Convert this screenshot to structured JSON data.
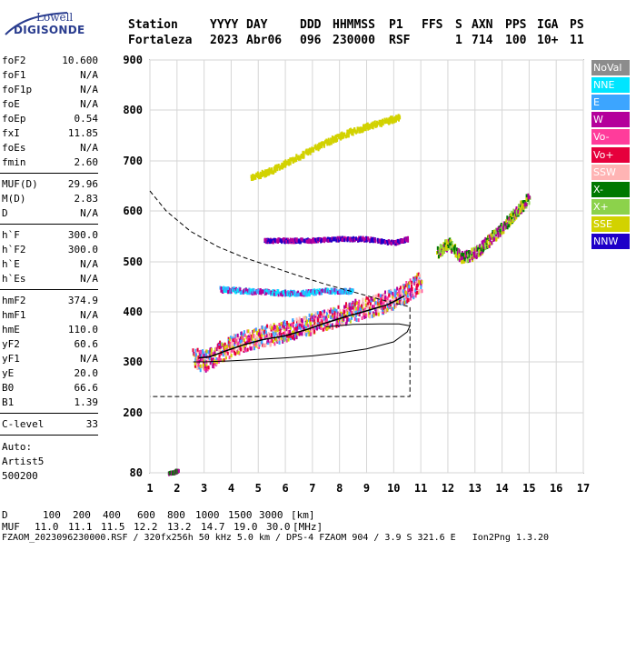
{
  "logo": {
    "line1": "Lowell",
    "line2": "DIGISONDE"
  },
  "header": {
    "row1": [
      "Station",
      "YYYY",
      "DAY",
      "DDD",
      "HHMMSS",
      "P1",
      "FFS",
      "S",
      "AXN",
      "PPS",
      "IGA",
      "PS"
    ],
    "row2": [
      "Fortaleza",
      "2023",
      "Abr06",
      "096",
      "230000",
      "RSF",
      "1",
      "714",
      "100",
      "10+",
      "11"
    ]
  },
  "params": [
    {
      "k": "foF2",
      "v": "10.600"
    },
    {
      "k": "foF1",
      "v": "N/A"
    },
    {
      "k": "foF1p",
      "v": "N/A"
    },
    {
      "k": "foE",
      "v": "N/A"
    },
    {
      "k": "foEp",
      "v": "0.54"
    },
    {
      "k": "fxI",
      "v": "11.85"
    },
    {
      "k": "foEs",
      "v": "N/A"
    },
    {
      "k": "fmin",
      "v": "2.60"
    },
    {
      "k": "MUF(D)",
      "v": "29.96"
    },
    {
      "k": "M(D)",
      "v": "2.83"
    },
    {
      "k": "D",
      "v": "N/A"
    },
    {
      "k": "h`F",
      "v": "300.0"
    },
    {
      "k": "h`F2",
      "v": "300.0"
    },
    {
      "k": "h`E",
      "v": "N/A"
    },
    {
      "k": "h`Es",
      "v": "N/A"
    },
    {
      "k": "hmF2",
      "v": "374.9"
    },
    {
      "k": "hmF1",
      "v": "N/A"
    },
    {
      "k": "hmE",
      "v": "110.0"
    },
    {
      "k": "yF2",
      "v": "60.6"
    },
    {
      "k": "yF1",
      "v": "N/A"
    },
    {
      "k": "yE",
      "v": "20.0"
    },
    {
      "k": "B0",
      "v": "66.6"
    },
    {
      "k": "B1",
      "v": "1.39"
    },
    {
      "k": "C-level",
      "v": "33"
    }
  ],
  "auto": [
    "Auto:",
    "Artist5",
    "500200"
  ],
  "legend": [
    {
      "label": "NoVal",
      "color": "#8c8c8c"
    },
    {
      "label": "NNE",
      "color": "#00e5ff"
    },
    {
      "label": "E",
      "color": "#3ca5ff"
    },
    {
      "label": "W",
      "color": "#b4009b"
    },
    {
      "label": "Vo-",
      "color": "#ff3c9b"
    },
    {
      "label": "Vo+",
      "color": "#e6003c"
    },
    {
      "label": "SSW",
      "color": "#ffb4b4"
    },
    {
      "label": "X-",
      "color": "#007800"
    },
    {
      "label": "X+",
      "color": "#8cd24b"
    },
    {
      "label": "SSE",
      "color": "#d2d200"
    },
    {
      "label": "NNW",
      "color": "#1e00c8"
    }
  ],
  "footer": {
    "d_row": [
      "D",
      "100",
      "200",
      "400",
      "600",
      "800",
      "1000",
      "1500",
      "3000",
      "[km]"
    ],
    "muf_row": [
      "MUF",
      "11.0",
      "11.1",
      "11.5",
      "12.2",
      "13.2",
      "14.7",
      "19.0",
      "30.0",
      "[MHz]"
    ],
    "info": "FZAOM_2023096230000.RSF / 320fx256h 50 kHz 5.0 km / DPS-4 FZAOM 904 / 3.9 S 321.6 E   Ion2Png 1.3.20"
  },
  "chart_data": {
    "type": "scatter",
    "title": "",
    "xlabel": "",
    "ylabel": "",
    "xlim": [
      1,
      17
    ],
    "ylim": [
      80,
      900
    ],
    "xticks": [
      1,
      2,
      3,
      4,
      5,
      6,
      7,
      8,
      9,
      10,
      11,
      12,
      13,
      14,
      15,
      16,
      17
    ],
    "yticks": [
      80,
      200,
      300,
      400,
      500,
      600,
      700,
      800,
      900
    ],
    "ytick_labels": [
      "80",
      "200",
      "300",
      "400",
      "500",
      "600",
      "700",
      "800",
      "900"
    ],
    "grid": true,
    "legend_position": "right",
    "traces": [
      {
        "name": "F-trace-lower",
        "color_keys": [
          4,
          5,
          6,
          9,
          3,
          2
        ],
        "points": [
          [
            2.6,
            310
          ],
          [
            3.0,
            305
          ],
          [
            3.5,
            320
          ],
          [
            4.0,
            335
          ],
          [
            4.5,
            345
          ],
          [
            5.0,
            352
          ],
          [
            5.5,
            358
          ],
          [
            6.0,
            365
          ],
          [
            6.5,
            372
          ],
          [
            7.0,
            380
          ],
          [
            7.5,
            388
          ],
          [
            8.0,
            395
          ],
          [
            8.5,
            405
          ],
          [
            9.0,
            412
          ],
          [
            9.5,
            420
          ],
          [
            10.0,
            430
          ],
          [
            10.5,
            445
          ],
          [
            11.0,
            465
          ]
        ],
        "spread": 40
      },
      {
        "name": "F-trace-upper-extraordinary",
        "color_keys": [
          7,
          8,
          3,
          9
        ],
        "points": [
          [
            11.6,
            520
          ],
          [
            12.0,
            540
          ],
          [
            12.5,
            510
          ],
          [
            13.0,
            520
          ],
          [
            13.5,
            545
          ],
          [
            14.0,
            570
          ],
          [
            14.5,
            600
          ],
          [
            15.0,
            630
          ]
        ],
        "spread": 20
      },
      {
        "name": "mid-layer-500",
        "color_keys": [
          10,
          3
        ],
        "points": [
          [
            5.2,
            545
          ],
          [
            6.0,
            545
          ],
          [
            7.0,
            545
          ],
          [
            8.0,
            548
          ],
          [
            9.0,
            548
          ],
          [
            10.0,
            540
          ],
          [
            10.5,
            548
          ]
        ],
        "spread": 6
      },
      {
        "name": "oblique-700",
        "color_keys": [
          9
        ],
        "points": [
          [
            4.7,
            668
          ],
          [
            5.5,
            685
          ],
          [
            6.5,
            712
          ],
          [
            7.5,
            740
          ],
          [
            8.5,
            762
          ],
          [
            9.5,
            778
          ],
          [
            10.2,
            790
          ]
        ],
        "spread": 10
      },
      {
        "name": "E-spread-450",
        "color_keys": [
          2,
          3,
          1
        ],
        "points": [
          [
            3.6,
            448
          ],
          [
            4.5,
            445
          ],
          [
            5.5,
            442
          ],
          [
            6.5,
            440
          ],
          [
            7.5,
            445
          ],
          [
            8.5,
            445
          ]
        ],
        "spread": 8
      },
      {
        "name": "low-echo",
        "color_keys": [
          7,
          3
        ],
        "points": [
          [
            1.7,
            82
          ],
          [
            1.9,
            84
          ],
          [
            2.0,
            88
          ]
        ],
        "spread": 3
      }
    ],
    "profile_solid": [
      [
        2.6,
        300
      ],
      [
        3.0,
        300
      ],
      [
        4.0,
        302
      ],
      [
        5.0,
        305
      ],
      [
        6.0,
        308
      ],
      [
        7.0,
        312
      ],
      [
        8.0,
        318
      ],
      [
        9.0,
        326
      ],
      [
        10.0,
        340
      ],
      [
        10.5,
        360
      ],
      [
        10.6,
        372
      ],
      [
        10.2,
        376
      ],
      [
        9.5,
        376
      ],
      [
        8.5,
        375
      ],
      [
        7.5,
        370
      ]
    ],
    "profile_dashed": [
      [
        1.0,
        640
      ],
      [
        1.6,
        600
      ],
      [
        2.5,
        560
      ],
      [
        3.5,
        530
      ],
      [
        4.5,
        508
      ],
      [
        5.5,
        490
      ],
      [
        6.5,
        472
      ],
      [
        7.5,
        455
      ],
      [
        8.5,
        440
      ],
      [
        9.5,
        425
      ],
      [
        10.6,
        410
      ],
      [
        10.6,
        232
      ],
      [
        1.0,
        232
      ]
    ],
    "muf_curve": [
      [
        2.8,
        308
      ],
      [
        3.2,
        310
      ],
      [
        3.8,
        322
      ],
      [
        4.5,
        335
      ],
      [
        5.2,
        345
      ],
      [
        6.0,
        352
      ],
      [
        6.8,
        365
      ],
      [
        7.5,
        378
      ],
      [
        8.2,
        390
      ],
      [
        9.0,
        402
      ],
      [
        9.8,
        415
      ],
      [
        10.4,
        432
      ]
    ]
  }
}
